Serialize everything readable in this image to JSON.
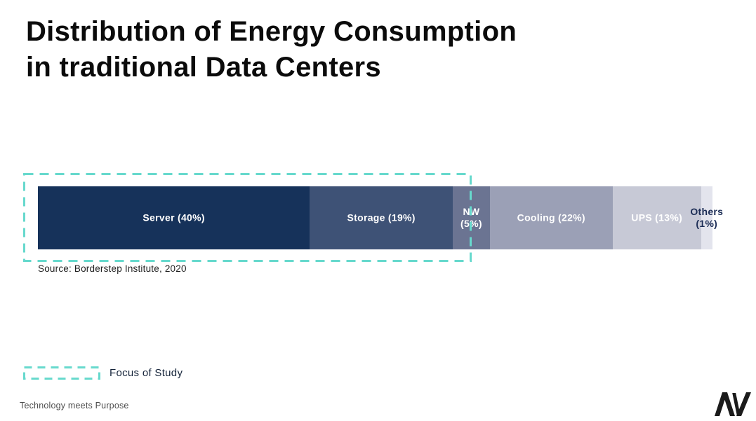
{
  "header": {
    "title_line1": "Distribution of Energy Consumption",
    "title_line2": "in traditional Data Centers"
  },
  "chart_data": {
    "type": "bar",
    "variant": "horizontal-stacked",
    "title": "Distribution of Energy Consumption in traditional Data Centers",
    "categories": [
      "Server",
      "Storage",
      "NW",
      "Cooling",
      "UPS",
      "Others"
    ],
    "values": [
      40,
      19,
      5,
      22,
      13,
      1
    ],
    "unit": "%",
    "segments": [
      {
        "name": "Server",
        "value": 40,
        "label_lines": [
          "Server (40%)"
        ],
        "color": "#16325a",
        "text_color": "#ffffff",
        "display_width_pct": 40.3
      },
      {
        "name": "Storage",
        "value": 19,
        "label_lines": [
          "Storage (19%)"
        ],
        "color": "#3e5276",
        "text_color": "#ffffff",
        "display_width_pct": 21.2
      },
      {
        "name": "NW",
        "value": 5,
        "label_lines": [
          "NW",
          "(5%)"
        ],
        "color": "#6b7492",
        "text_color": "#ffffff",
        "display_width_pct": 5.5
      },
      {
        "name": "Cooling",
        "value": 22,
        "label_lines": [
          "Cooling (22%)"
        ],
        "color": "#9ba0b6",
        "text_color": "#ffffff",
        "display_width_pct": 18.2
      },
      {
        "name": "UPS",
        "value": 13,
        "label_lines": [
          "UPS (13%)"
        ],
        "color": "#c7c9d6",
        "text_color": "#ffffff",
        "display_width_pct": 13.1
      },
      {
        "name": "Others",
        "value": 1,
        "label_lines": [
          "Others",
          "(1%)"
        ],
        "color": "#e3e4ed",
        "text_color": "#1b2c55",
        "display_width_pct": 1.7
      }
    ],
    "source": "Source: Borderstep Institute, 2020",
    "focus": {
      "label": "Focus of Study",
      "color": "#67d9cd",
      "covers": "Server + Storage + half of NW"
    },
    "layout_hints": {
      "legend_position": "bottom-left",
      "grid": false,
      "axis_labels": false
    }
  },
  "footer": {
    "tagline": "Technology meets Purpose",
    "logo_icon": "av-monogram-logo"
  }
}
